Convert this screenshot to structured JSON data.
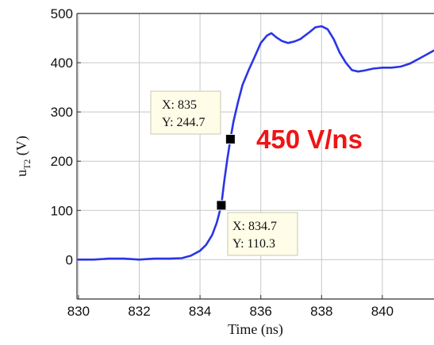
{
  "chart_data": {
    "type": "line",
    "title": "",
    "xlabel": "Time (ns)",
    "ylabel_main": "u",
    "ylabel_sub": "T2",
    "ylabel_unit": " (V)",
    "xlim": [
      829.95,
      841.7
    ],
    "ylim": [
      -80,
      500
    ],
    "xticks": [
      830,
      832,
      834,
      836,
      838,
      840
    ],
    "yticks": [
      0,
      100,
      200,
      300,
      400,
      500
    ],
    "grid": true,
    "line_color": "#2a35e6",
    "series": [
      {
        "x": [
          830,
          830.5,
          831,
          831.5,
          832,
          832.5,
          833,
          833.4,
          833.7,
          834.0,
          834.2,
          834.4,
          834.55,
          834.7,
          834.8,
          834.9,
          835.0,
          835.1,
          835.25,
          835.4,
          835.6,
          835.8,
          836.0,
          836.2,
          836.35,
          836.5,
          836.7,
          836.9,
          837.1,
          837.3,
          837.6,
          837.8,
          838.0,
          838.2,
          838.4,
          838.6,
          838.8,
          839.0,
          839.2,
          839.4,
          839.7,
          840.0,
          840.3,
          840.6,
          840.9,
          841.2,
          841.5,
          841.7
        ],
        "y": [
          0,
          0,
          2,
          2,
          0,
          2,
          2,
          3,
          8,
          18,
          30,
          50,
          75,
          110,
          160,
          205,
          244.7,
          280,
          320,
          355,
          385,
          412,
          440,
          455,
          460,
          452,
          444,
          440,
          443,
          448,
          462,
          472,
          474,
          468,
          448,
          420,
          400,
          385,
          382,
          384,
          388,
          390,
          390,
          392,
          398,
          408,
          418,
          425
        ]
      }
    ],
    "markers": [
      {
        "x": 835,
        "y": 244.7
      },
      {
        "x": 834.7,
        "y": 110.3
      }
    ],
    "datatips": [
      {
        "x_label": "X: 835",
        "y_label": "Y: 244.7"
      },
      {
        "x_label": "X: 834.7",
        "y_label": "Y: 110.3"
      }
    ],
    "annotation": {
      "text": "450 V/ns",
      "color": "#f01414"
    }
  }
}
